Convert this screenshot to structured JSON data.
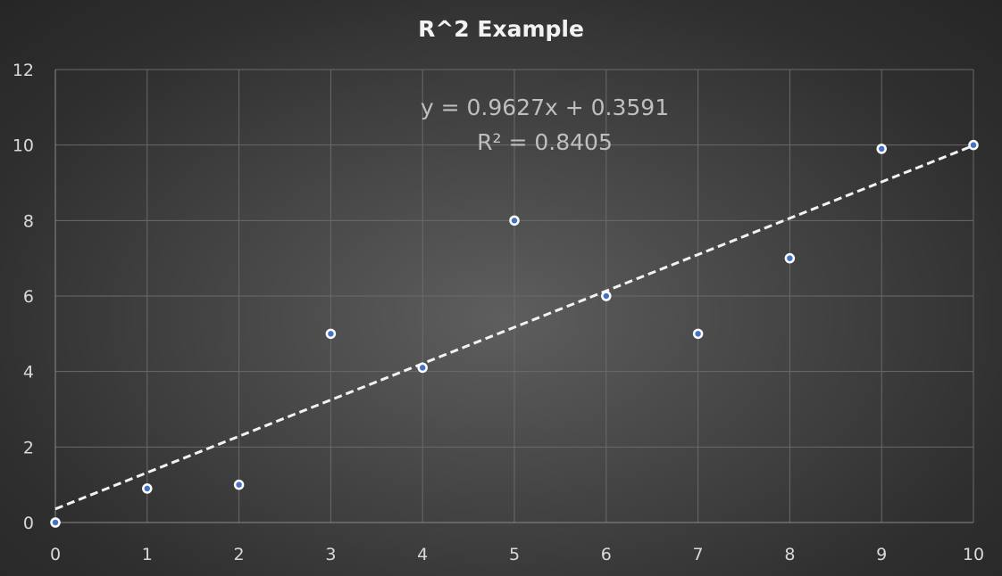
{
  "chart_data": {
    "type": "scatter",
    "title": "R^2 Example",
    "xlabel": "",
    "ylabel": "",
    "xlim": [
      0,
      10
    ],
    "ylim": [
      0,
      12
    ],
    "x_ticks": [
      "0",
      "1",
      "2",
      "3",
      "4",
      "5",
      "6",
      "7",
      "8",
      "9",
      "10"
    ],
    "y_ticks": [
      "0",
      "2",
      "4",
      "6",
      "8",
      "10",
      "12"
    ],
    "grid": true,
    "legend": "none",
    "point_color": "#4472c4",
    "trendline_color": "#f2f2f2",
    "series": [
      {
        "points": [
          {
            "x": 0,
            "y": 0
          },
          {
            "x": 1,
            "y": 0.9
          },
          {
            "x": 2,
            "y": 1
          },
          {
            "x": 3,
            "y": 5
          },
          {
            "x": 4,
            "y": 4.1
          },
          {
            "x": 5,
            "y": 8
          },
          {
            "x": 6,
            "y": 6
          },
          {
            "x": 7,
            "y": 5
          },
          {
            "x": 8,
            "y": 7
          },
          {
            "x": 9,
            "y": 9.9
          },
          {
            "x": 10,
            "y": 10
          }
        ]
      }
    ],
    "trendline": {
      "type": "linear",
      "slope": 0.9627,
      "intercept": 0.3591,
      "equation_label": "y = 0.9627x + 0.3591",
      "r2_label": "R² = 0.8405"
    }
  }
}
